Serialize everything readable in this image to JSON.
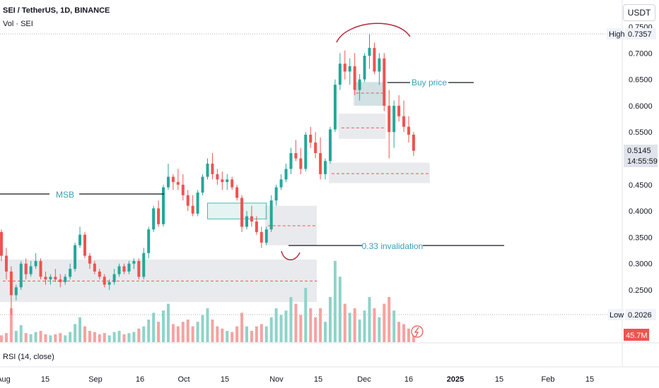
{
  "header": {
    "title": "SEI / TetherUS, 1D, BINANCE",
    "volume_label": "Vol · SEI",
    "currency_button": "USDT",
    "rsi_label": "RSI (14, close)"
  },
  "colors": {
    "up": "#26a69a",
    "down": "#ef5350",
    "up_volume": "#8fd3c9",
    "down_volume": "#f5a3a1",
    "zone": "#e9eaee",
    "annotation": "#3aa0b8",
    "circle": "#b2283c"
  },
  "chart_data": {
    "type": "candlestick",
    "symbol": "SEI / TetherUS",
    "interval": "1D",
    "exchange": "BINANCE",
    "y_axis": {
      "ticks": [
        "0.7500",
        "0.7000",
        "0.6500",
        "0.6000",
        "0.5500",
        "0.5000",
        "0.4500",
        "0.4000",
        "0.3500",
        "0.3000",
        "0.2500"
      ],
      "ylim": [
        0.185,
        0.76
      ]
    },
    "x_axis": {
      "ticks": [
        "Aug",
        "15",
        "Sep",
        "16",
        "Oct",
        "15",
        "Nov",
        "15",
        "Dec",
        "16",
        "2025",
        "15",
        "Feb",
        "15"
      ]
    },
    "price_labels": {
      "high_label": "High",
      "high_value": "0.7357",
      "last_value": "0.5145",
      "countdown": "14:55:59",
      "low_label": "Low",
      "low_value": "0.2026",
      "volume_value": "45.7M"
    },
    "annotations": {
      "msb": "MSB",
      "buy_price": "Buy price",
      "invalidation": "0.33 invalidation"
    },
    "zones": [
      {
        "from_bar": 0,
        "to_bar": 64,
        "low": 0.227,
        "high": 0.308,
        "mid": 0.267
      },
      {
        "from_bar": 54,
        "to_bar": 64,
        "low": 0.335,
        "high": 0.41,
        "mid": 0.372
      },
      {
        "from_bar": 67,
        "to_bar": 87,
        "low": 0.453,
        "high": 0.492,
        "mid": 0.471
      },
      {
        "from_bar": 69,
        "to_bar": 78,
        "low": 0.537,
        "high": 0.585,
        "mid": 0.558
      },
      {
        "from_bar": 72,
        "to_bar": 78,
        "low": 0.6,
        "high": 0.645,
        "mid": 0.624
      }
    ],
    "ohlc": [
      [
        0.36,
        0.365,
        0.305,
        0.315
      ],
      [
        0.315,
        0.33,
        0.27,
        0.285
      ],
      [
        0.285,
        0.295,
        0.2026,
        0.24
      ],
      [
        0.24,
        0.26,
        0.23,
        0.255
      ],
      [
        0.255,
        0.305,
        0.25,
        0.3
      ],
      [
        0.3,
        0.31,
        0.27,
        0.28
      ],
      [
        0.28,
        0.305,
        0.275,
        0.295
      ],
      [
        0.295,
        0.32,
        0.29,
        0.305
      ],
      [
        0.305,
        0.31,
        0.27,
        0.275
      ],
      [
        0.275,
        0.285,
        0.26,
        0.27
      ],
      [
        0.27,
        0.28,
        0.26,
        0.275
      ],
      [
        0.275,
        0.29,
        0.265,
        0.27
      ],
      [
        0.27,
        0.28,
        0.255,
        0.265
      ],
      [
        0.265,
        0.28,
        0.26,
        0.275
      ],
      [
        0.275,
        0.3,
        0.27,
        0.29
      ],
      [
        0.29,
        0.34,
        0.285,
        0.335
      ],
      [
        0.335,
        0.37,
        0.33,
        0.355
      ],
      [
        0.355,
        0.36,
        0.31,
        0.315
      ],
      [
        0.315,
        0.32,
        0.29,
        0.3
      ],
      [
        0.3,
        0.305,
        0.28,
        0.285
      ],
      [
        0.285,
        0.29,
        0.27,
        0.275
      ],
      [
        0.275,
        0.28,
        0.255,
        0.26
      ],
      [
        0.26,
        0.27,
        0.25,
        0.265
      ],
      [
        0.265,
        0.29,
        0.26,
        0.28
      ],
      [
        0.28,
        0.3,
        0.275,
        0.295
      ],
      [
        0.295,
        0.3,
        0.28,
        0.285
      ],
      [
        0.285,
        0.305,
        0.28,
        0.3
      ],
      [
        0.3,
        0.31,
        0.29,
        0.305
      ],
      [
        0.305,
        0.31,
        0.27,
        0.275
      ],
      [
        0.275,
        0.33,
        0.27,
        0.32
      ],
      [
        0.32,
        0.37,
        0.31,
        0.365
      ],
      [
        0.365,
        0.41,
        0.36,
        0.405
      ],
      [
        0.405,
        0.42,
        0.37,
        0.375
      ],
      [
        0.375,
        0.45,
        0.37,
        0.445
      ],
      [
        0.445,
        0.49,
        0.44,
        0.465
      ],
      [
        0.465,
        0.47,
        0.44,
        0.455
      ],
      [
        0.455,
        0.48,
        0.44,
        0.45
      ],
      [
        0.45,
        0.47,
        0.42,
        0.43
      ],
      [
        0.43,
        0.44,
        0.4,
        0.41
      ],
      [
        0.41,
        0.43,
        0.39,
        0.395
      ],
      [
        0.395,
        0.44,
        0.39,
        0.435
      ],
      [
        0.435,
        0.47,
        0.43,
        0.465
      ],
      [
        0.465,
        0.5,
        0.46,
        0.49
      ],
      [
        0.49,
        0.51,
        0.46,
        0.47
      ],
      [
        0.47,
        0.48,
        0.45,
        0.46
      ],
      [
        0.46,
        0.475,
        0.44,
        0.455
      ],
      [
        0.455,
        0.47,
        0.44,
        0.46
      ],
      [
        0.46,
        0.465,
        0.44,
        0.445
      ],
      [
        0.445,
        0.45,
        0.42,
        0.425
      ],
      [
        0.425,
        0.43,
        0.36,
        0.37
      ],
      [
        0.37,
        0.4,
        0.365,
        0.39
      ],
      [
        0.39,
        0.41,
        0.37,
        0.38
      ],
      [
        0.38,
        0.39,
        0.355,
        0.36
      ],
      [
        0.36,
        0.37,
        0.33,
        0.34
      ],
      [
        0.34,
        0.37,
        0.335,
        0.365
      ],
      [
        0.365,
        0.43,
        0.36,
        0.42
      ],
      [
        0.42,
        0.45,
        0.41,
        0.445
      ],
      [
        0.445,
        0.47,
        0.44,
        0.46
      ],
      [
        0.46,
        0.49,
        0.455,
        0.48
      ],
      [
        0.48,
        0.52,
        0.47,
        0.51
      ],
      [
        0.51,
        0.535,
        0.495,
        0.5
      ],
      [
        0.5,
        0.52,
        0.47,
        0.48
      ],
      [
        0.48,
        0.55,
        0.475,
        0.545
      ],
      [
        0.545,
        0.56,
        0.52,
        0.53
      ],
      [
        0.53,
        0.55,
        0.5,
        0.51
      ],
      [
        0.51,
        0.54,
        0.46,
        0.47
      ],
      [
        0.47,
        0.5,
        0.46,
        0.495
      ],
      [
        0.495,
        0.56,
        0.49,
        0.555
      ],
      [
        0.555,
        0.65,
        0.55,
        0.64
      ],
      [
        0.64,
        0.7,
        0.63,
        0.68
      ],
      [
        0.68,
        0.705,
        0.65,
        0.665
      ],
      [
        0.665,
        0.69,
        0.64,
        0.675
      ],
      [
        0.675,
        0.7,
        0.62,
        0.63
      ],
      [
        0.63,
        0.66,
        0.61,
        0.65
      ],
      [
        0.65,
        0.7,
        0.645,
        0.695
      ],
      [
        0.695,
        0.7357,
        0.67,
        0.71
      ],
      [
        0.71,
        0.72,
        0.66,
        0.665
      ],
      [
        0.665,
        0.7,
        0.64,
        0.69
      ],
      [
        0.69,
        0.7,
        0.59,
        0.6
      ],
      [
        0.6,
        0.63,
        0.5,
        0.55
      ],
      [
        0.55,
        0.61,
        0.52,
        0.6
      ],
      [
        0.6,
        0.62,
        0.57,
        0.58
      ],
      [
        0.58,
        0.61,
        0.55,
        0.56
      ],
      [
        0.56,
        0.58,
        0.53,
        0.545
      ],
      [
        0.545,
        0.55,
        0.505,
        0.5145
      ]
    ],
    "volume": [
      [
        6,
        0
      ],
      [
        8,
        0
      ],
      [
        30,
        0
      ],
      [
        10,
        1
      ],
      [
        15,
        1
      ],
      [
        8,
        0
      ],
      [
        7,
        1
      ],
      [
        9,
        1
      ],
      [
        10,
        0
      ],
      [
        7,
        0
      ],
      [
        6,
        1
      ],
      [
        7,
        0
      ],
      [
        8,
        0
      ],
      [
        6,
        1
      ],
      [
        9,
        1
      ],
      [
        16,
        1
      ],
      [
        22,
        1
      ],
      [
        14,
        0
      ],
      [
        10,
        0
      ],
      [
        9,
        0
      ],
      [
        7,
        0
      ],
      [
        8,
        0
      ],
      [
        6,
        1
      ],
      [
        9,
        1
      ],
      [
        10,
        1
      ],
      [
        7,
        0
      ],
      [
        8,
        1
      ],
      [
        9,
        1
      ],
      [
        12,
        0
      ],
      [
        14,
        1
      ],
      [
        20,
        1
      ],
      [
        26,
        1
      ],
      [
        18,
        0
      ],
      [
        28,
        1
      ],
      [
        34,
        1
      ],
      [
        16,
        0
      ],
      [
        14,
        0
      ],
      [
        18,
        0
      ],
      [
        20,
        0
      ],
      [
        14,
        0
      ],
      [
        18,
        1
      ],
      [
        24,
        1
      ],
      [
        30,
        1
      ],
      [
        20,
        0
      ],
      [
        14,
        0
      ],
      [
        12,
        0
      ],
      [
        10,
        1
      ],
      [
        9,
        0
      ],
      [
        14,
        0
      ],
      [
        26,
        0
      ],
      [
        14,
        1
      ],
      [
        10,
        0
      ],
      [
        14,
        0
      ],
      [
        16,
        0
      ],
      [
        14,
        1
      ],
      [
        22,
        1
      ],
      [
        30,
        1
      ],
      [
        24,
        1
      ],
      [
        28,
        1
      ],
      [
        40,
        1
      ],
      [
        34,
        0
      ],
      [
        24,
        0
      ],
      [
        48,
        1
      ],
      [
        30,
        0
      ],
      [
        22,
        0
      ],
      [
        30,
        0
      ],
      [
        18,
        1
      ],
      [
        40,
        1
      ],
      [
        72,
        1
      ],
      [
        58,
        1
      ],
      [
        34,
        0
      ],
      [
        26,
        1
      ],
      [
        30,
        0
      ],
      [
        20,
        1
      ],
      [
        28,
        1
      ],
      [
        40,
        1
      ],
      [
        30,
        0
      ],
      [
        22,
        1
      ],
      [
        34,
        0
      ],
      [
        40,
        0
      ],
      [
        28,
        1
      ],
      [
        18,
        0
      ],
      [
        16,
        0
      ],
      [
        12,
        0
      ],
      [
        10,
        0
      ]
    ]
  }
}
